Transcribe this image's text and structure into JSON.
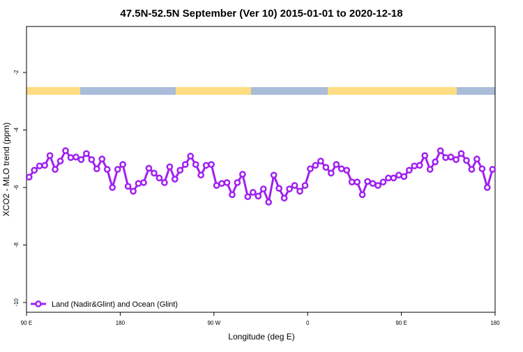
{
  "chart_data": {
    "type": "line",
    "title": "47.5N-52.5N September (Ver 10)   2015-01-01 to 2020-12-18",
    "x_label": "Longitude (deg E)",
    "y_label": "XCO2 - MLO trend (ppm)",
    "x": [
      92.5,
      97.5,
      102.5,
      107.5,
      112.5,
      117.5,
      122.5,
      127.5,
      132.5,
      137.5,
      142.5,
      147.5,
      152.5,
      157.5,
      162.5,
      167.5,
      172.5,
      177.5,
      182.5,
      187.5,
      192.5,
      197.5,
      202.5,
      207.5,
      212.5,
      217.5,
      222.5,
      227.5,
      232.5,
      237.5,
      242.5,
      247.5,
      252.5,
      257.5,
      262.5,
      267.5,
      272.5,
      277.5,
      282.5,
      287.5,
      292.5,
      297.5,
      302.5,
      307.5,
      312.5,
      317.5,
      322.5,
      327.5,
      332.5,
      337.5,
      342.5,
      347.5,
      352.5,
      357.5,
      362.5,
      367.5,
      372.5,
      377.5,
      382.5,
      387.5,
      392.5,
      397.5,
      402.5,
      407.5,
      412.5,
      417.5,
      422.5,
      427.5,
      432.5,
      437.5,
      442.5,
      447.5,
      452.5,
      457.5,
      462.5,
      467.5,
      472.5,
      477.5,
      482.5,
      487.5,
      492.5,
      497.5,
      502.5,
      507.5,
      512.5,
      517.5,
      522.5,
      527.5,
      532.5,
      537.5
    ],
    "series": [
      {
        "name": "Land (Nadir&Glint) and Ocean (Glint)",
        "color": "#a020f0",
        "values": [
          -5.64,
          -5.4,
          -5.25,
          -5.23,
          -4.89,
          -5.37,
          -5.08,
          -4.72,
          -4.96,
          -4.94,
          -5.03,
          -4.82,
          -5.03,
          -5.35,
          -5.01,
          -5.37,
          -6.0,
          -5.37,
          -5.2,
          -5.96,
          -6.13,
          -5.86,
          -5.83,
          -5.33,
          -5.5,
          -5.67,
          -5.83,
          -5.28,
          -5.71,
          -5.4,
          -5.2,
          -4.91,
          -5.2,
          -5.57,
          -5.23,
          -5.2,
          -5.93,
          -5.86,
          -5.83,
          -6.25,
          -5.83,
          -5.54,
          -6.32,
          -6.17,
          -6.3,
          -6.05,
          -6.51,
          -5.57,
          -6.03,
          -6.37,
          -6.05,
          -5.93,
          -6.13,
          -5.93,
          -5.35,
          -5.23,
          -5.08,
          -5.3,
          -5.5,
          -5.2,
          -5.35,
          -5.4,
          -5.81,
          -5.81,
          -6.25,
          -5.79,
          -5.86,
          -5.93,
          -5.81,
          -5.67,
          -5.67,
          -5.57,
          -5.62,
          -5.4,
          -5.25,
          -5.23,
          -4.89,
          -5.37,
          -5.11,
          -4.72,
          -4.96,
          -4.94,
          -5.03,
          -4.82,
          -5.06,
          -5.37,
          -5.01,
          -5.35,
          -6.0,
          -5.37
        ]
      }
    ],
    "xlim": [
      90,
      540
    ],
    "xticks": [
      {
        "value": 90,
        "label": "90 E"
      },
      {
        "value": 180,
        "label": "180"
      },
      {
        "value": 270,
        "label": "90 W"
      },
      {
        "value": 360,
        "label": "0"
      },
      {
        "value": 450,
        "label": "90 E"
      },
      {
        "value": 540,
        "label": "180"
      }
    ],
    "ylim": [
      -10.34,
      -0.4
    ],
    "yticks": [
      -2,
      -4,
      -6,
      -8,
      -10
    ],
    "legend": "bottom-left"
  }
}
